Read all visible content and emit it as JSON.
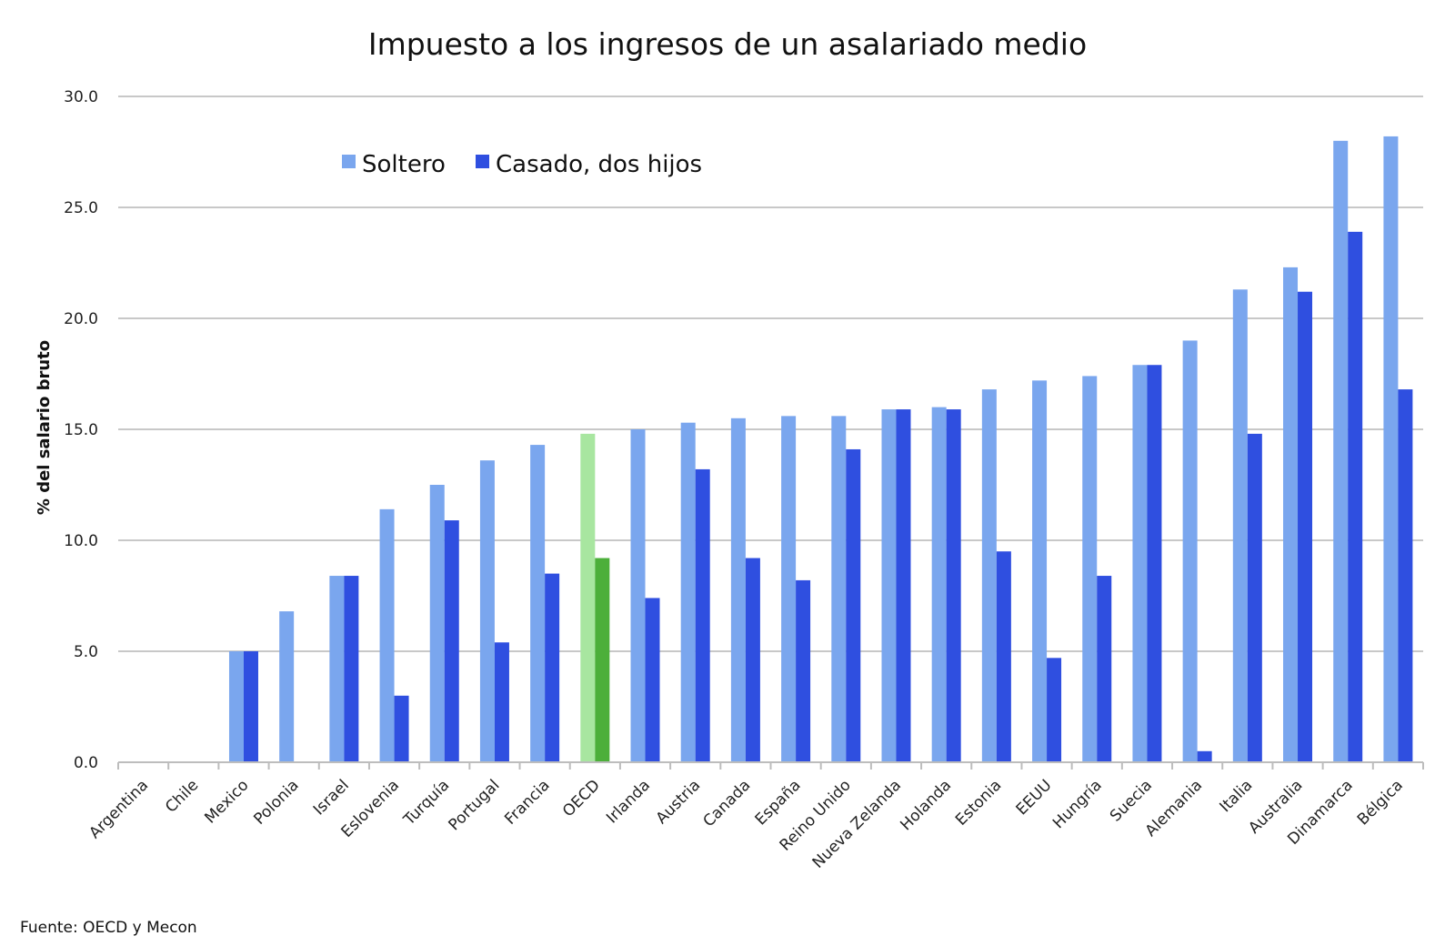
{
  "chart_data": {
    "type": "bar",
    "title": "Impuesto a los ingresos de un asalariado medio",
    "ylabel": "% del salario bruto",
    "xlabel": "",
    "ylim": [
      0,
      30
    ],
    "yticks": [
      "0.0",
      "5.0",
      "10.0",
      "15.0",
      "20.0",
      "25.0",
      "30.0"
    ],
    "grid": true,
    "legend_position": "top-left",
    "categories": [
      "Argentina",
      "Chile",
      "Mexico",
      "Polonia",
      "Israel",
      "Eslovenia",
      "Turquía",
      "Portugal",
      "Francia",
      "OECD",
      "Irlanda",
      "Austria",
      "Canada",
      "España",
      "Reino Unido",
      "Nueva Zelanda",
      "Holanda",
      "Estonia",
      "EEUU",
      "Hungría",
      "Suecia",
      "Alemania",
      "Italia",
      "Australia",
      "Dinamarca",
      "Bélgica"
    ],
    "series": [
      {
        "name": "Soltero",
        "color": "#7aa6ee",
        "values": [
          0,
          0,
          5.0,
          6.8,
          8.4,
          11.4,
          12.5,
          13.6,
          14.3,
          14.8,
          15.0,
          15.3,
          15.5,
          15.6,
          15.6,
          15.9,
          16.0,
          16.8,
          17.2,
          17.4,
          17.9,
          19.0,
          21.3,
          22.3,
          28.0,
          28.2
        ]
      },
      {
        "name": "Casado, dos hijos",
        "color": "#2f4fe0",
        "values": [
          0,
          0,
          5.0,
          0,
          8.4,
          3.0,
          10.9,
          5.4,
          8.5,
          9.2,
          7.4,
          13.2,
          9.2,
          8.2,
          14.1,
          15.9,
          15.9,
          9.5,
          4.7,
          8.4,
          17.9,
          0.5,
          14.8,
          21.2,
          23.9,
          16.8
        ]
      }
    ],
    "highlight": {
      "category": "OECD",
      "colors": [
        "#a8e6a0",
        "#4caf3a"
      ]
    },
    "source": "Fuente: OECD y Mecon"
  }
}
